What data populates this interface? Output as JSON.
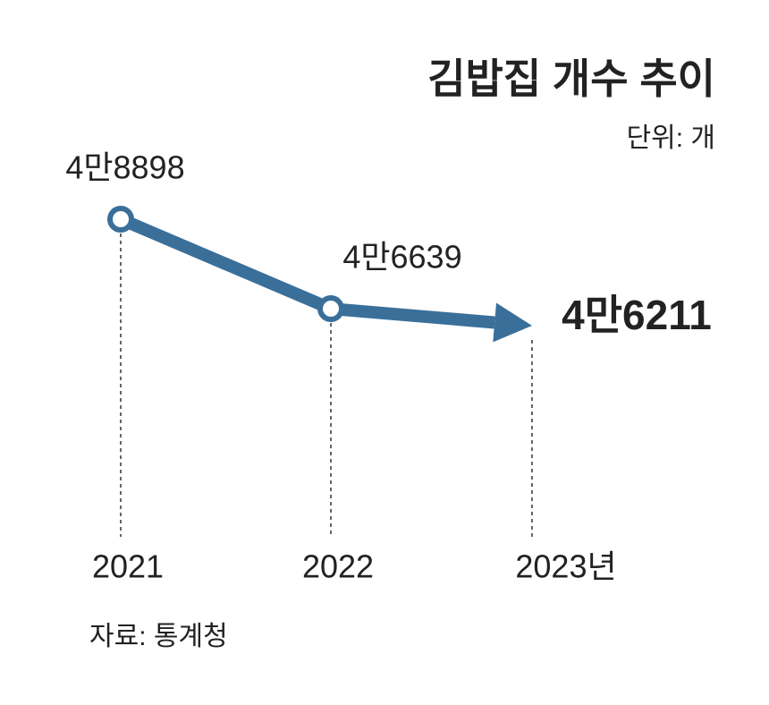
{
  "chart_data": {
    "type": "line",
    "title": "김밥집 개수 추이",
    "unit": "단위: 개",
    "source": "자료: 통계청",
    "categories": [
      "2021",
      "2022",
      "2023년"
    ],
    "values": [
      48898,
      46639,
      46211
    ],
    "value_labels": [
      "4만8898",
      "4만6639",
      "4만6211"
    ],
    "color": "#3a6f9a"
  }
}
